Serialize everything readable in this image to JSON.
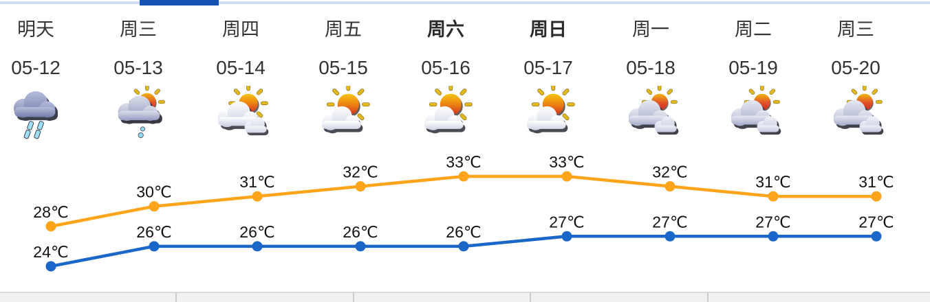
{
  "colors": {
    "tab_rail": "#cfdcf1",
    "tab_indicator": "#1453b4",
    "high_line": "#ffa41b",
    "low_line": "#1b66c9",
    "day_text": "#333333",
    "temp_label_text": "#111111"
  },
  "forecast": {
    "days": [
      {
        "label": "明天",
        "date": "05-12",
        "icon": "heavy-rain-icon",
        "bold": false
      },
      {
        "label": "周三",
        "date": "05-13",
        "icon": "sun-shower-icon",
        "bold": false
      },
      {
        "label": "周四",
        "date": "05-14",
        "icon": "sun-clouds-icon",
        "bold": false
      },
      {
        "label": "周五",
        "date": "05-15",
        "icon": "sun-cloud-icon",
        "bold": false
      },
      {
        "label": "周六",
        "date": "05-16",
        "icon": "sun-cloud-icon",
        "bold": true
      },
      {
        "label": "周日",
        "date": "05-17",
        "icon": "sun-cloud-icon",
        "bold": true
      },
      {
        "label": "周一",
        "date": "05-18",
        "icon": "cloudy-icon",
        "bold": false
      },
      {
        "label": "周二",
        "date": "05-19",
        "icon": "cloudy-icon",
        "bold": false
      },
      {
        "label": "周三",
        "date": "05-20",
        "icon": "cloudy-icon",
        "bold": false
      }
    ]
  },
  "chart_data": {
    "type": "line",
    "categories": [
      "05-12",
      "05-13",
      "05-14",
      "05-15",
      "05-16",
      "05-17",
      "05-18",
      "05-19",
      "05-20"
    ],
    "series": [
      {
        "name": "high",
        "color": "#ffa41b",
        "values": [
          28,
          30,
          31,
          32,
          33,
          33,
          32,
          31,
          31
        ]
      },
      {
        "name": "low",
        "color": "#1b66c9",
        "values": [
          24,
          26,
          26,
          26,
          26,
          27,
          27,
          27,
          27
        ]
      }
    ],
    "unit": "℃",
    "point_labels": true,
    "ylim": [
      23,
      34
    ],
    "grid": false,
    "legend": "none"
  }
}
